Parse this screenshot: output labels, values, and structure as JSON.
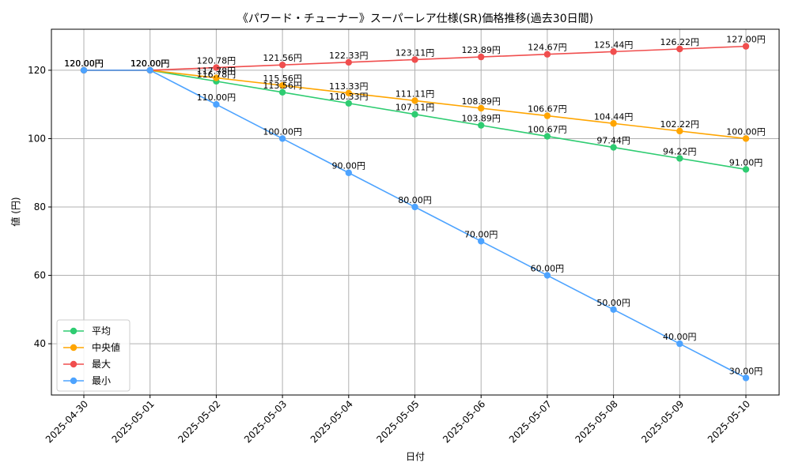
{
  "chart_data": {
    "type": "line",
    "title": "《パワード・チューナー》スーパーレア仕様(SR)価格推移(過去30日間)",
    "xlabel": "日付",
    "ylabel": "値 (円)",
    "categories": [
      "2025-04-30",
      "2025-05-01",
      "2025-05-02",
      "2025-05-03",
      "2025-05-04",
      "2025-05-05",
      "2025-05-06",
      "2025-05-07",
      "2025-05-08",
      "2025-05-09",
      "2025-05-10"
    ],
    "ylim": [
      25,
      132
    ],
    "yticks": [
      40,
      60,
      80,
      100,
      120
    ],
    "grid": true,
    "legend_position": "lower-left",
    "value_suffix": "円",
    "series": [
      {
        "name": "平均",
        "color": "#2ecc71",
        "values": [
          120.0,
          120.0,
          116.78,
          113.56,
          110.33,
          107.11,
          103.89,
          100.67,
          97.44,
          94.22,
          91.0
        ]
      },
      {
        "name": "中央値",
        "color": "#ffa500",
        "values": [
          120.0,
          120.0,
          117.78,
          115.56,
          113.33,
          111.11,
          108.89,
          106.67,
          104.44,
          102.22,
          100.0
        ]
      },
      {
        "name": "最大",
        "color": "#f04e4e",
        "values": [
          120.0,
          120.0,
          120.78,
          121.56,
          122.33,
          123.11,
          123.89,
          124.67,
          125.44,
          126.22,
          127.0
        ]
      },
      {
        "name": "最小",
        "color": "#4da3ff",
        "values": [
          120.0,
          120.0,
          110.0,
          100.0,
          90.0,
          80.0,
          70.0,
          60.0,
          50.0,
          40.0,
          30.0
        ]
      }
    ]
  }
}
